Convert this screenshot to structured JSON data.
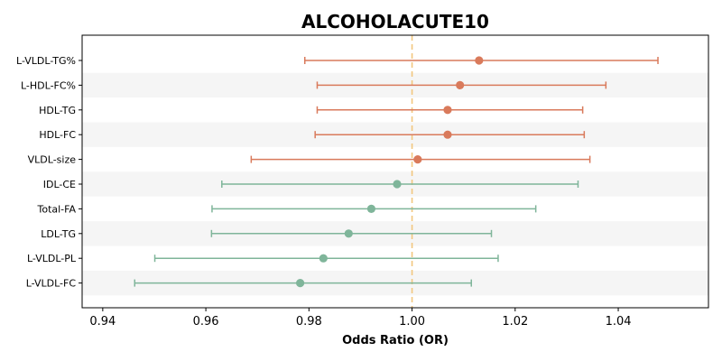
{
  "chart_data": {
    "type": "forest",
    "title": "ALCOHOLACUTE10",
    "xlabel": "Odds Ratio (OR)",
    "ylabel": "",
    "xlim": [
      0.936,
      1.0575
    ],
    "xticks": [
      0.94,
      0.96,
      0.98,
      1.0,
      1.02,
      1.04
    ],
    "xtick_labels": [
      "0.94",
      "0.96",
      "0.98",
      "1.00",
      "1.02",
      "1.04"
    ],
    "reference_line": 1.0,
    "reference_line_style": "dashed",
    "grid": false,
    "legend": "none",
    "alternating_row_shading": true,
    "colors": {
      "positive": "#d97a5b",
      "negative": "#7fb59a",
      "reference": "#f2c77e",
      "row_shade": "#f5f5f5"
    },
    "items": [
      {
        "label": "L-VLDL-TG%",
        "or": 1.013,
        "lower": 0.9792,
        "upper": 1.0477
      },
      {
        "label": "L-HDL-FC%",
        "or": 1.0093,
        "lower": 0.9816,
        "upper": 1.0376
      },
      {
        "label": "HDL-TG",
        "or": 1.0069,
        "lower": 0.9816,
        "upper": 1.0331
      },
      {
        "label": "HDL-FC",
        "or": 1.0069,
        "lower": 0.9812,
        "upper": 1.0334
      },
      {
        "label": "VLDL-size",
        "or": 1.0011,
        "lower": 0.9688,
        "upper": 1.0345
      },
      {
        "label": "IDL-CE",
        "or": 0.9971,
        "lower": 0.9631,
        "upper": 1.0322
      },
      {
        "label": "Total-FA",
        "or": 0.9921,
        "lower": 0.9612,
        "upper": 1.024
      },
      {
        "label": "LDL-TG",
        "or": 0.9877,
        "lower": 0.9611,
        "upper": 1.0154
      },
      {
        "label": "L-VLDL-PL",
        "or": 0.9828,
        "lower": 0.9501,
        "upper": 1.0167
      },
      {
        "label": "L-VLDL-FC",
        "or": 0.9783,
        "lower": 0.9462,
        "upper": 1.0115
      }
    ]
  }
}
